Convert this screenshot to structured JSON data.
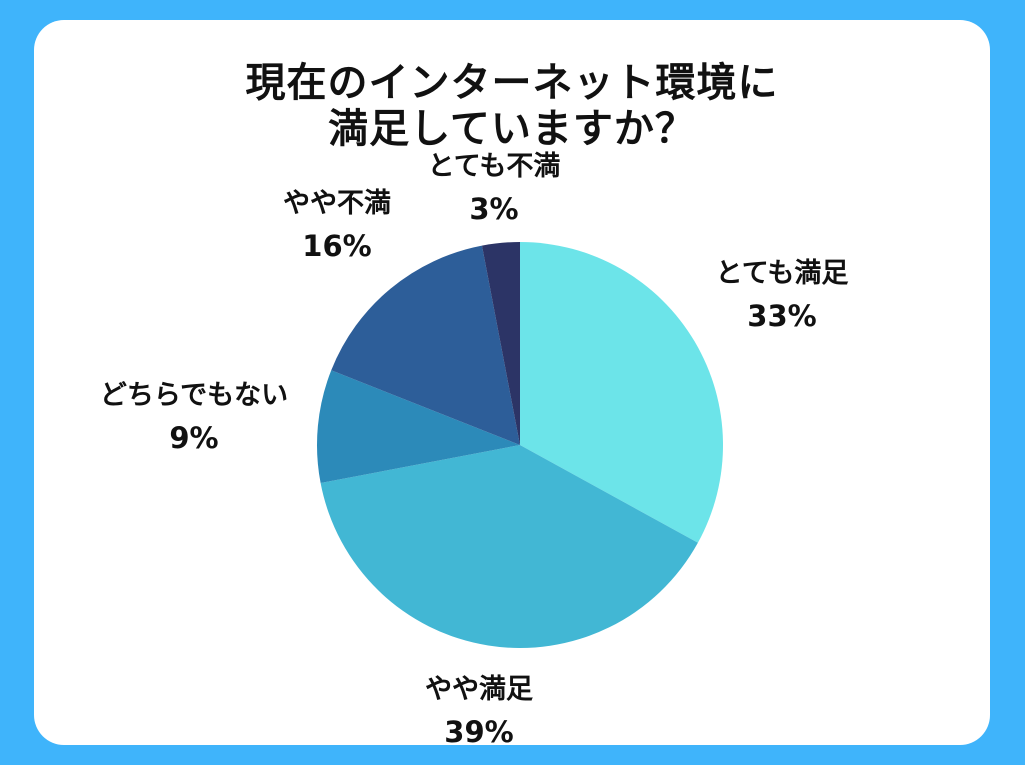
{
  "chart_data": {
    "type": "pie",
    "title": [
      "現在のインターネット環境に",
      "満足していますか？"
    ],
    "slices": [
      {
        "label": "とても満足",
        "value": 33,
        "display": "33%",
        "color": "#6ce4e9"
      },
      {
        "label": "やや満足",
        "value": 39,
        "display": "39%",
        "color": "#42b7d4"
      },
      {
        "label": "どちらでもない",
        "value": 9,
        "display": "9%",
        "color": "#2c8ab9"
      },
      {
        "label": "やや不満",
        "value": 16,
        "display": "16%",
        "color": "#2d5e99"
      },
      {
        "label": "とても不満",
        "value": 3,
        "display": "3%",
        "color": "#2c3466"
      }
    ]
  },
  "colors": {
    "background": "#3fb4fb",
    "card": "#ffffff",
    "text": "#111111"
  }
}
